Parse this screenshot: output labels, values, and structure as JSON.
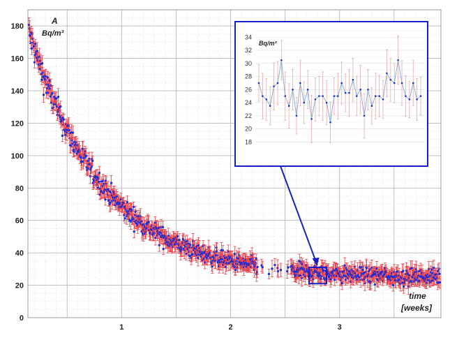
{
  "chart_data": [
    {
      "type": "scatter",
      "title": "",
      "x_unit_label": "time",
      "x_unit_sub": "[weeks]",
      "y_unit_label": "A",
      "y_unit_sub": "Bq/m³",
      "xlim": [
        0.14,
        3.93
      ],
      "ylim": [
        0,
        190
      ],
      "yticks": [
        0,
        20,
        40,
        60,
        80,
        100,
        120,
        140,
        160,
        180
      ],
      "xticks": [
        1,
        2,
        3
      ],
      "grid": true,
      "marker_color": "#1f2fd6",
      "errorbar_color": "#e8404a",
      "gap_start": 2.25,
      "gap_end": 2.55,
      "model": {
        "description_only": false,
        "equilibrium": 24.5,
        "initial": 178,
        "decay_per_week": 1.45,
        "scatter": 3.5,
        "error": 4
      },
      "sample_points": [
        {
          "x": 0.15,
          "y": 178
        },
        {
          "x": 0.25,
          "y": 162
        },
        {
          "x": 0.4,
          "y": 135
        },
        {
          "x": 0.5,
          "y": 118
        },
        {
          "x": 0.6,
          "y": 103
        },
        {
          "x": 0.75,
          "y": 85
        },
        {
          "x": 0.9,
          "y": 73
        },
        {
          "x": 1.0,
          "y": 65
        },
        {
          "x": 1.2,
          "y": 56
        },
        {
          "x": 1.4,
          "y": 49
        },
        {
          "x": 1.6,
          "y": 43
        },
        {
          "x": 1.8,
          "y": 40
        },
        {
          "x": 2.0,
          "y": 36
        },
        {
          "x": 2.2,
          "y": 32
        },
        {
          "x": 2.5,
          "y": 28
        },
        {
          "x": 2.8,
          "y": 26
        },
        {
          "x": 3.0,
          "y": 25
        },
        {
          "x": 3.5,
          "y": 25
        },
        {
          "x": 3.9,
          "y": 24
        }
      ]
    },
    {
      "type": "line",
      "title": "",
      "role": "inset",
      "y_unit": "Bq/m³",
      "ylim": [
        16,
        35
      ],
      "yticks": [
        18,
        20,
        22,
        24,
        26,
        28,
        30,
        32,
        34
      ],
      "marker_color": "#1f2fd6",
      "line_color": "#8ab0d8",
      "errorbar_color": "#e8a0a0",
      "values": [
        27,
        25,
        24.5,
        23.5,
        26.5,
        27,
        30.5,
        25,
        23.5,
        26,
        22,
        27,
        24,
        26,
        21.5,
        24.5,
        25,
        25,
        24,
        21,
        25,
        25,
        27,
        25.5,
        25.5,
        27.5,
        25,
        26,
        22,
        26,
        23.5,
        25,
        25,
        24.5,
        28.5,
        27.5,
        27,
        30.5,
        27,
        25,
        24.5,
        27,
        24.5,
        25
      ]
    }
  ]
}
